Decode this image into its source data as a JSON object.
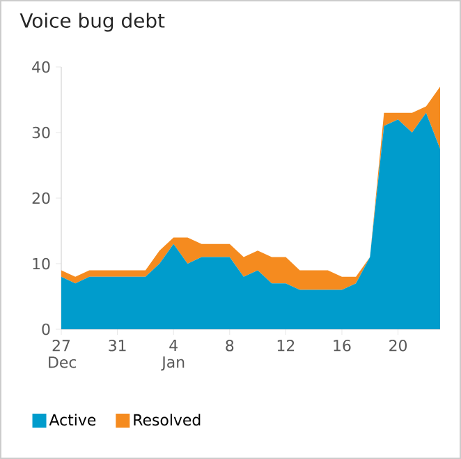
{
  "chart_data": {
    "type": "area",
    "title": "Voice bug debt",
    "stacked": true,
    "legend": "bottom left",
    "categories": [
      "27 Dec",
      null,
      null,
      null,
      "31",
      null,
      null,
      null,
      "4 Jan",
      null,
      null,
      null,
      "8",
      null,
      null,
      null,
      "12",
      null,
      null,
      null,
      "16",
      null,
      null,
      null,
      "20",
      null,
      null,
      null
    ],
    "ylim": [
      0,
      40
    ],
    "yticks": [
      0,
      10,
      20,
      30,
      40
    ],
    "series": [
      {
        "name": "Active",
        "color": "#009ccc",
        "values": [
          8,
          7,
          8,
          8,
          8,
          8,
          8,
          10,
          13,
          10,
          11,
          11,
          11,
          8,
          9,
          7,
          7,
          6,
          6,
          6,
          6,
          7,
          11,
          31,
          32,
          30,
          33,
          27.5
        ]
      },
      {
        "name": "Resolved",
        "color": "#f58b1f",
        "values": [
          1,
          1,
          1,
          1,
          1,
          1,
          1,
          2,
          1,
          4,
          2,
          2,
          2,
          3,
          3,
          4,
          4,
          3,
          3,
          3,
          2,
          1,
          0,
          2,
          1,
          3,
          1,
          9.5
        ]
      }
    ]
  }
}
